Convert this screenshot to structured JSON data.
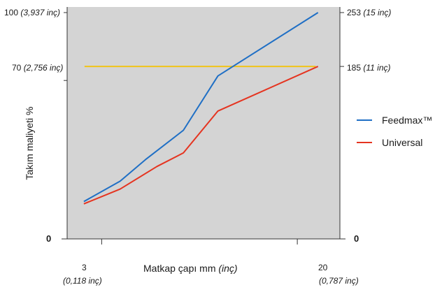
{
  "chart_data": {
    "type": "line",
    "ylabel": "Takım maliyeti %",
    "xlabel_main": "Matkap çapı mm ",
    "xlabel_unit": "(inç)",
    "y_left_ticks": [
      {
        "value": 100,
        "label": "100 ",
        "note": "(3,937 inç)"
      },
      {
        "value": 70,
        "label": "70 ",
        "note": "(2,756 inç)"
      },
      {
        "value": 0,
        "label": "0",
        "note": ""
      }
    ],
    "y_right_ticks": [
      {
        "value": 253,
        "label": "253 ",
        "note": "(15 inç)"
      },
      {
        "value": 185,
        "label": "185 ",
        "note": "(11 inç)"
      },
      {
        "value": 0,
        "label": "0",
        "note": ""
      }
    ],
    "x_ticks": [
      {
        "value": 3,
        "label": "3",
        "note": "(0,118 inç)"
      },
      {
        "value": 20,
        "label": "20",
        "note": "(0,787 inç)"
      }
    ],
    "xlim": [
      0,
      23.7
    ],
    "ylim": [
      0,
      100
    ],
    "grid": false,
    "legend_position": "right",
    "background_color": "#d4d4d4",
    "reference_line": {
      "y": 76.2,
      "color": "#f0c419"
    },
    "series": [
      {
        "name": "Feedmax™",
        "color": "#1f6fc5",
        "x": [
          1.45,
          4.6,
          6.8,
          10.1,
          13.1,
          21.8
        ],
        "y": [
          16.5,
          25.5,
          35,
          48,
          72,
          100
        ]
      },
      {
        "name": "Universal",
        "color": "#e53420",
        "x": [
          1.45,
          4.6,
          7.8,
          10.1,
          13.1,
          21.8
        ],
        "y": [
          15.5,
          22,
          32,
          38,
          56.5,
          76.2
        ]
      }
    ]
  }
}
